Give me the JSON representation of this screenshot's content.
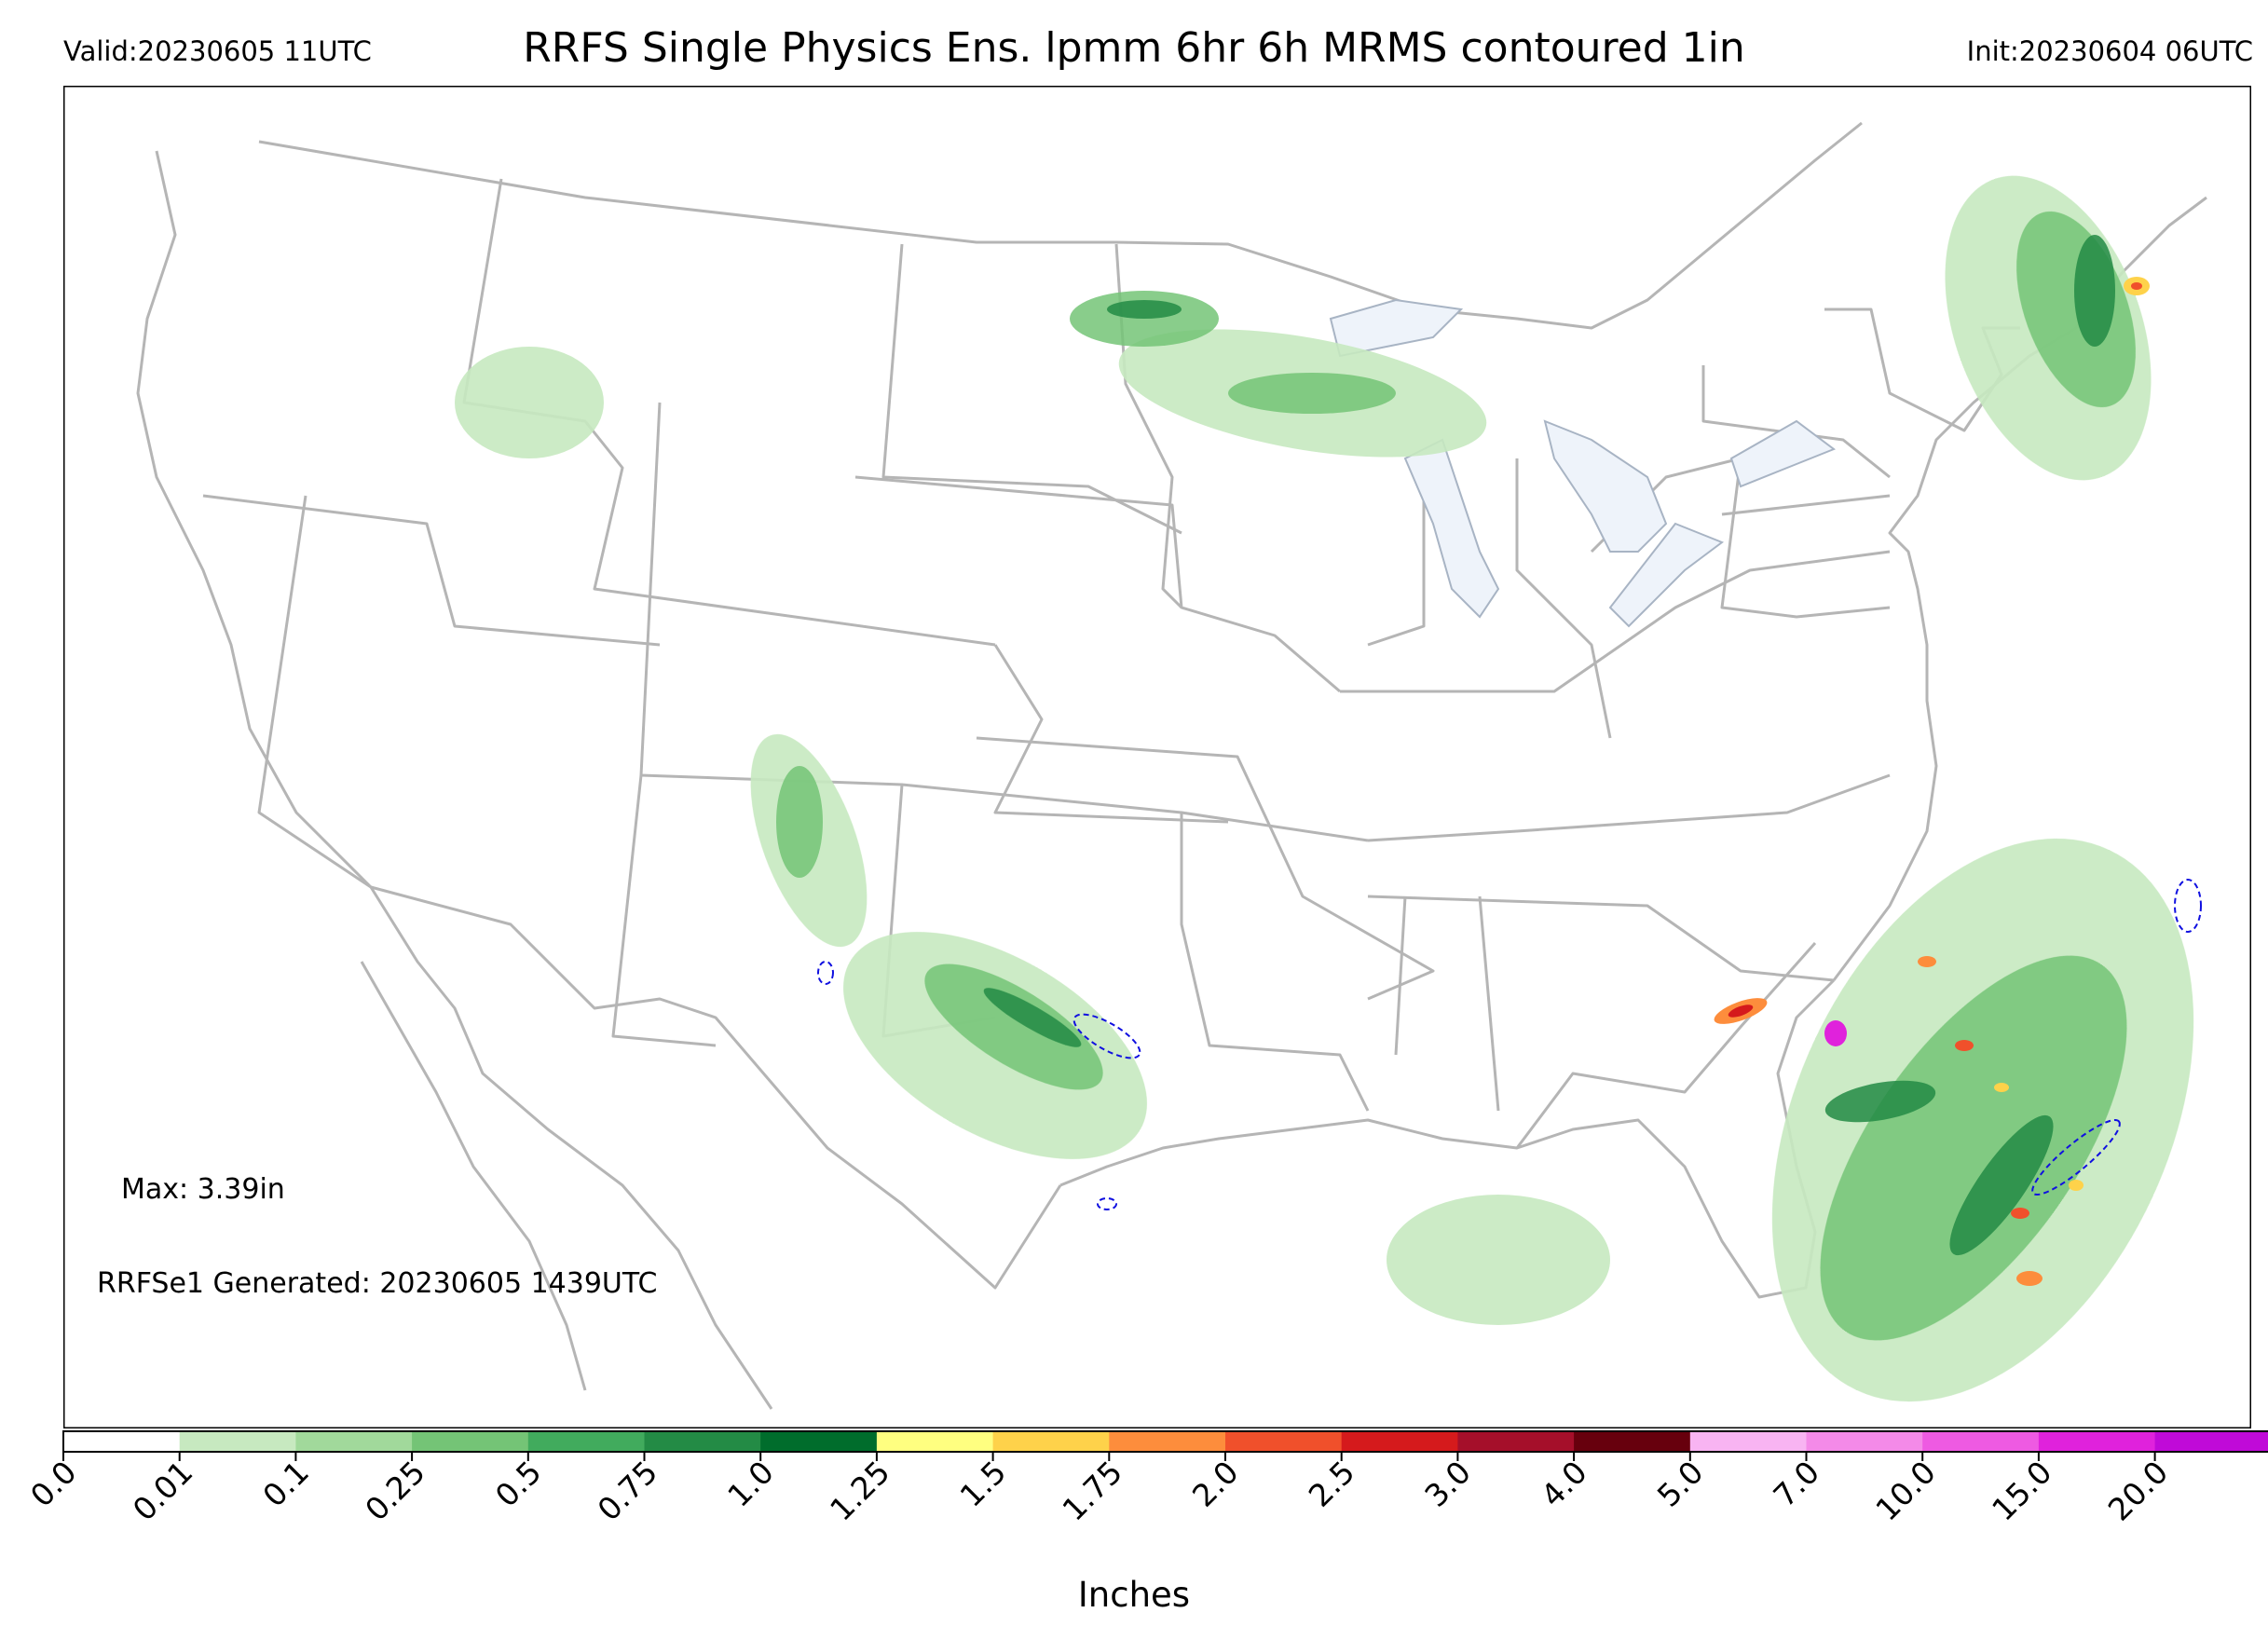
{
  "header": {
    "valid": "Valid:20230605 11UTC",
    "title": "RRFS Single Physics Ens. lpmm 6hr 6h MRMS contoured 1in",
    "init": "Init:20230604 06UTC"
  },
  "annotations": {
    "max": "Max: 3.39in",
    "generated": "RRFSe1 Generated: 20230605 1439UTC"
  },
  "colorbar": {
    "label": "Inches",
    "ticks": [
      "0.0",
      "0.01",
      "0.1",
      "0.25",
      "0.5",
      "0.75",
      "1.0",
      "1.25",
      "1.5",
      "1.75",
      "2.0",
      "2.5",
      "3.0",
      "4.0",
      "5.0",
      "7.0",
      "10.0",
      "15.0",
      "20.0"
    ],
    "colors": [
      "#ffffff",
      "#c7e9c0",
      "#a1d99b",
      "#74c476",
      "#41ab5d",
      "#238b45",
      "#006d2c",
      "#ffff80",
      "#fed24a",
      "#fd8d3c",
      "#f0502b",
      "#d51a1c",
      "#a50f2a",
      "#67000d",
      "#f8b4f2",
      "#f48ae8",
      "#ee5ae2",
      "#e022dc",
      "#c00ad8",
      "#8a12c6"
    ]
  },
  "contour_color": "#1010e0",
  "land_colors": {
    "water": "#eef3fa",
    "borders": "#b0b0b0"
  }
}
